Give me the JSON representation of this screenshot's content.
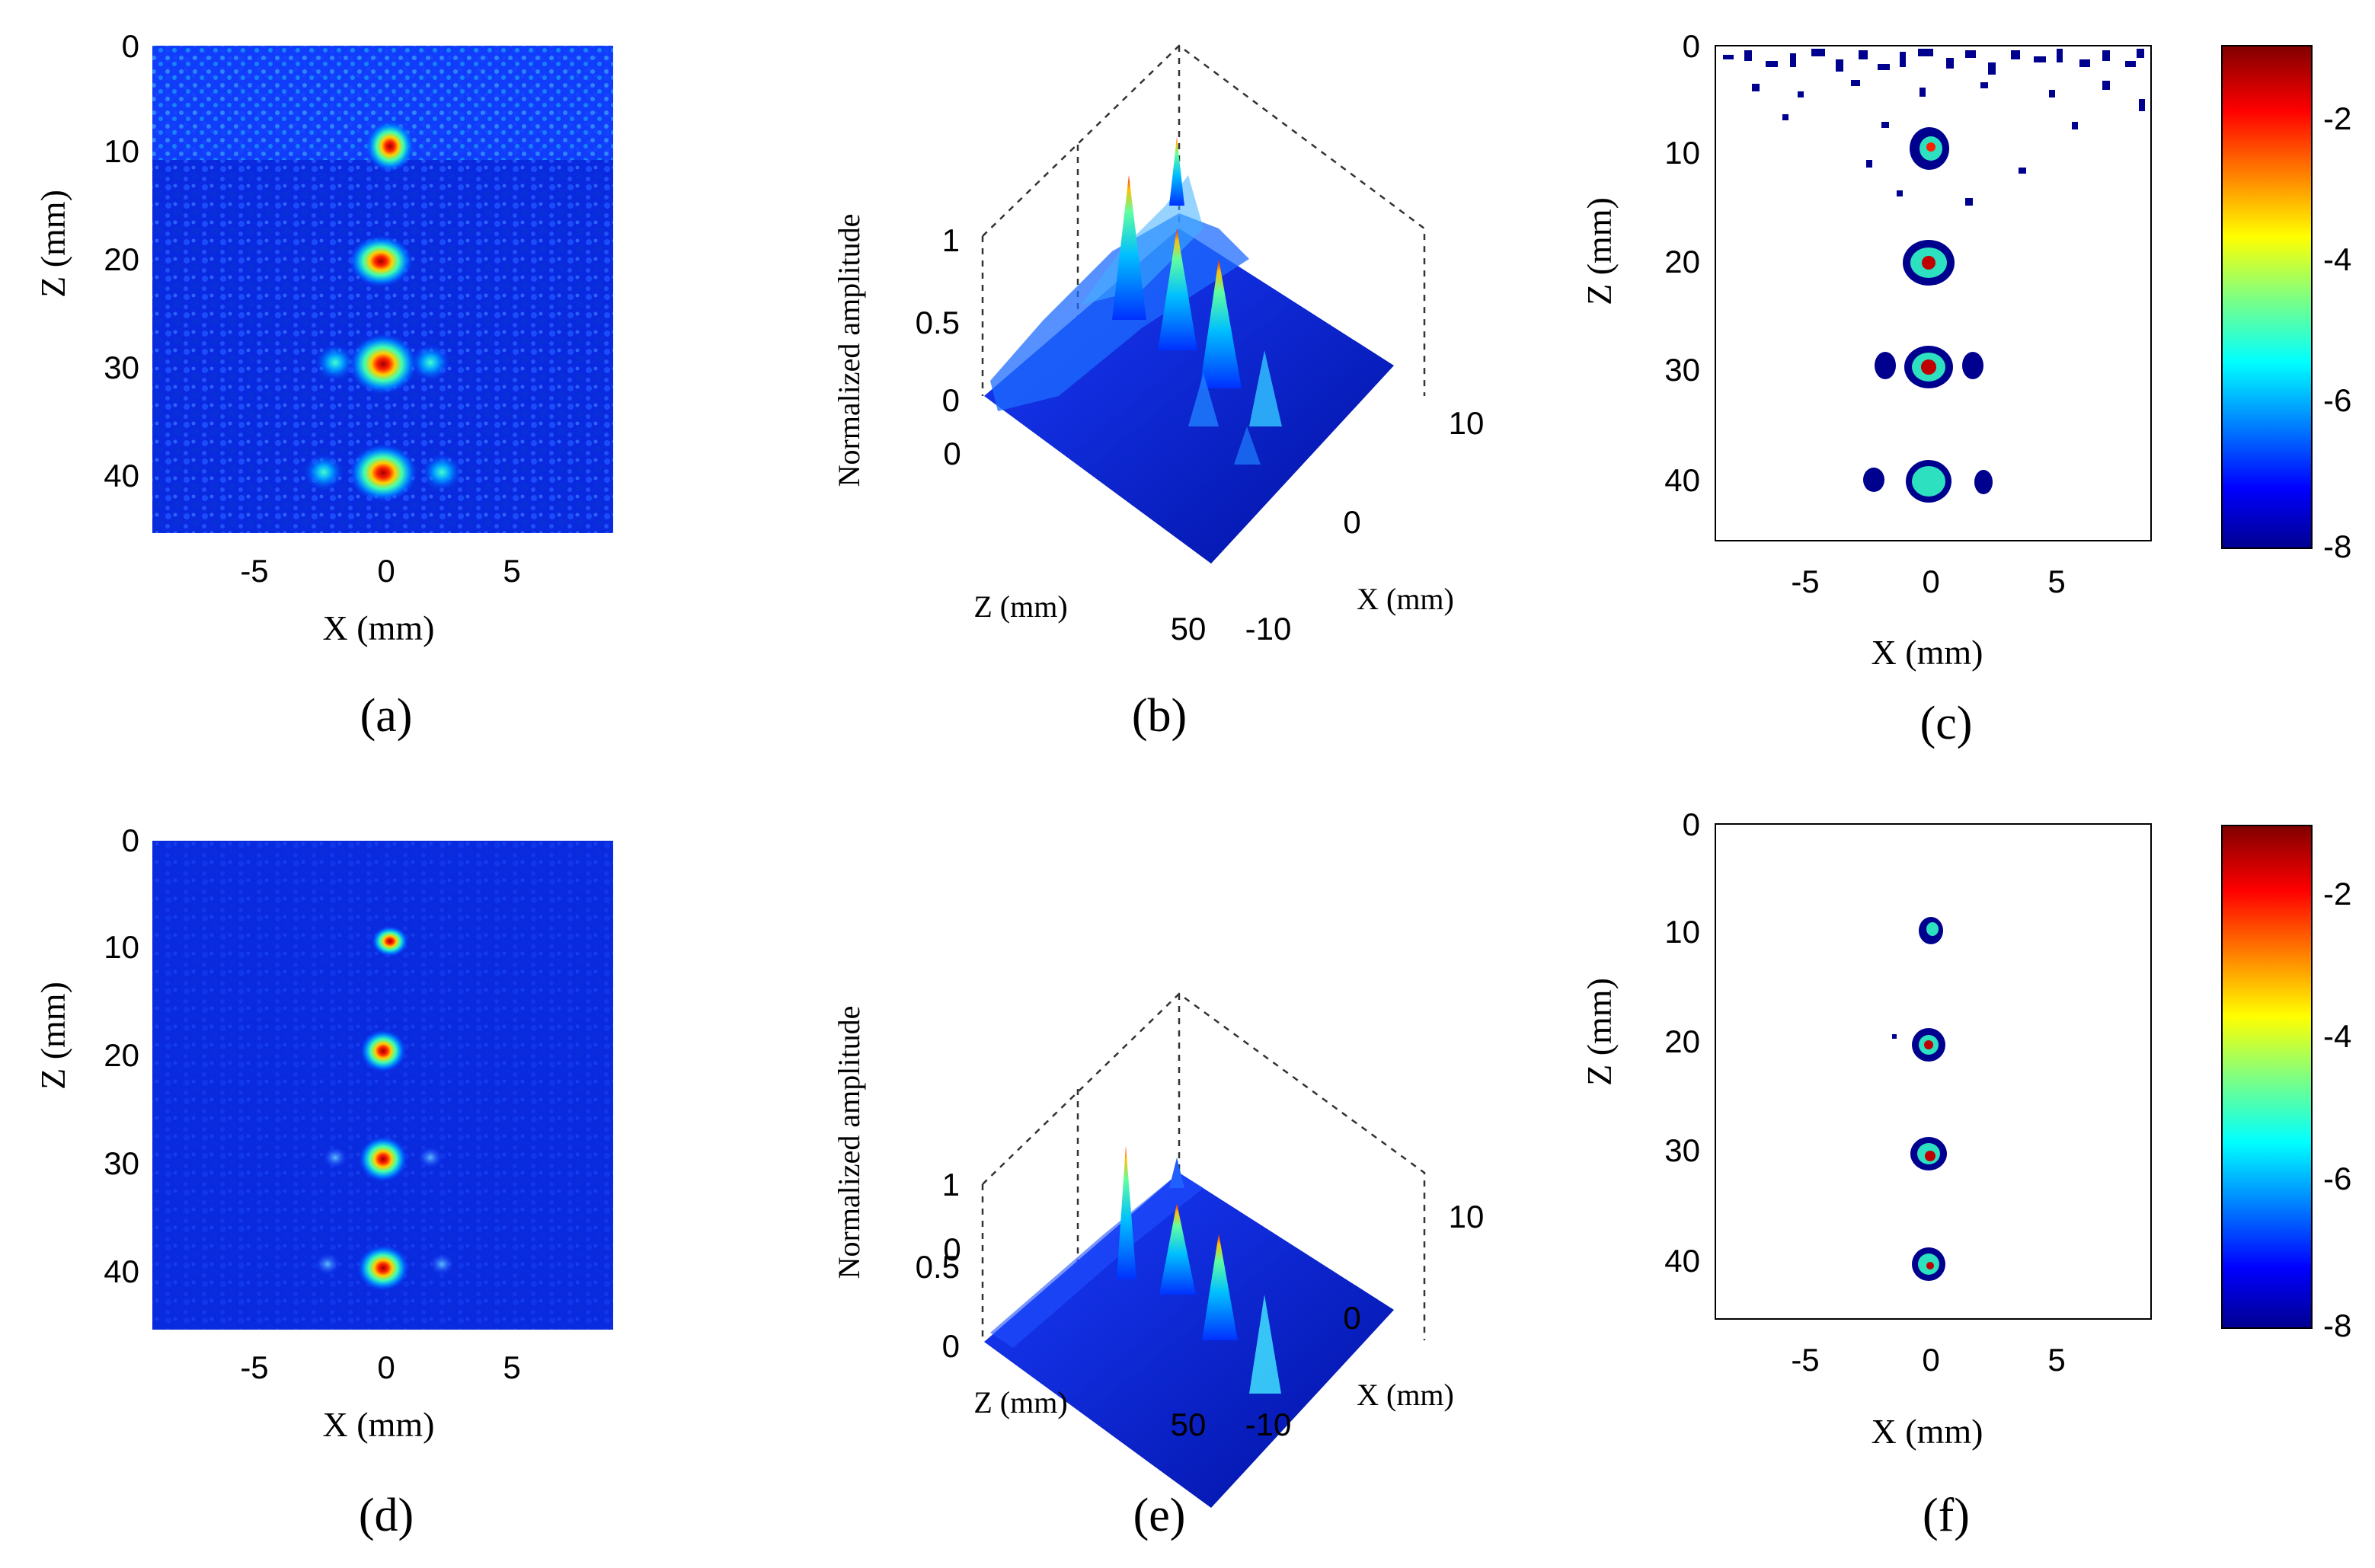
{
  "figure": {
    "panels": [
      {
        "id": "a",
        "caption": "(a)",
        "type": "image",
        "variant": "noisy",
        "xlabel": "X (mm)",
        "ylabel": "Z (mm)",
        "x_ticks": [
          "-5",
          "0",
          "5"
        ],
        "z_ticks": [
          "0",
          "10",
          "20",
          "30",
          "40"
        ]
      },
      {
        "id": "b",
        "caption": "(b)",
        "type": "surface3d",
        "variant": "noisy",
        "zaxis_label": "Normalized amplitude",
        "amp_ticks": [
          "1",
          "0.5",
          "0"
        ],
        "z_label": "Z (mm)",
        "z_ticks": [
          "0",
          "50"
        ],
        "x_label": "X (mm)",
        "x_ticks": [
          "10",
          "0",
          "-10"
        ]
      },
      {
        "id": "c",
        "caption": "(c)",
        "type": "threshold",
        "variant": "noisy",
        "xlabel": "X (mm)",
        "ylabel": "Z (mm)",
        "x_ticks": [
          "-5",
          "0",
          "5"
        ],
        "z_ticks": [
          "0",
          "10",
          "20",
          "30",
          "40"
        ]
      },
      {
        "id": "d",
        "caption": "(d)",
        "type": "image",
        "variant": "clean",
        "xlabel": "X (mm)",
        "ylabel": "Z (mm)",
        "x_ticks": [
          "-5",
          "0",
          "5"
        ],
        "z_ticks": [
          "0",
          "10",
          "20",
          "30",
          "40"
        ]
      },
      {
        "id": "e",
        "caption": "(e)",
        "type": "surface3d",
        "variant": "clean",
        "zaxis_label": "Normalized amplitude",
        "amp_ticks": [
          "1",
          "0.5",
          "0"
        ],
        "z_label": "Z (mm)",
        "z_ticks": [
          "0",
          "50"
        ],
        "x_label": "X (mm)",
        "x_ticks": [
          "10",
          "0",
          "-10"
        ]
      },
      {
        "id": "f",
        "caption": "(f)",
        "type": "threshold",
        "variant": "clean",
        "xlabel": "X (mm)",
        "ylabel": "Z (mm)",
        "x_ticks": [
          "-5",
          "0",
          "5"
        ],
        "z_ticks": [
          "0",
          "10",
          "20",
          "30",
          "40"
        ]
      }
    ],
    "colorbars": [
      {
        "row": 1,
        "ticks": [
          "-2",
          "-4",
          "-6",
          "-8"
        ]
      },
      {
        "row": 2,
        "ticks": [
          "-2",
          "-4",
          "-6",
          "-8"
        ]
      }
    ],
    "colormap": [
      "#00008f",
      "#0000ff",
      "#0080ff",
      "#00ffff",
      "#80ff80",
      "#ffff00",
      "#ff8000",
      "#ff0000",
      "#800000"
    ],
    "targets": {
      "x_mm": [
        0,
        0,
        0,
        0
      ],
      "z_mm": [
        10,
        20,
        30,
        40
      ]
    }
  }
}
